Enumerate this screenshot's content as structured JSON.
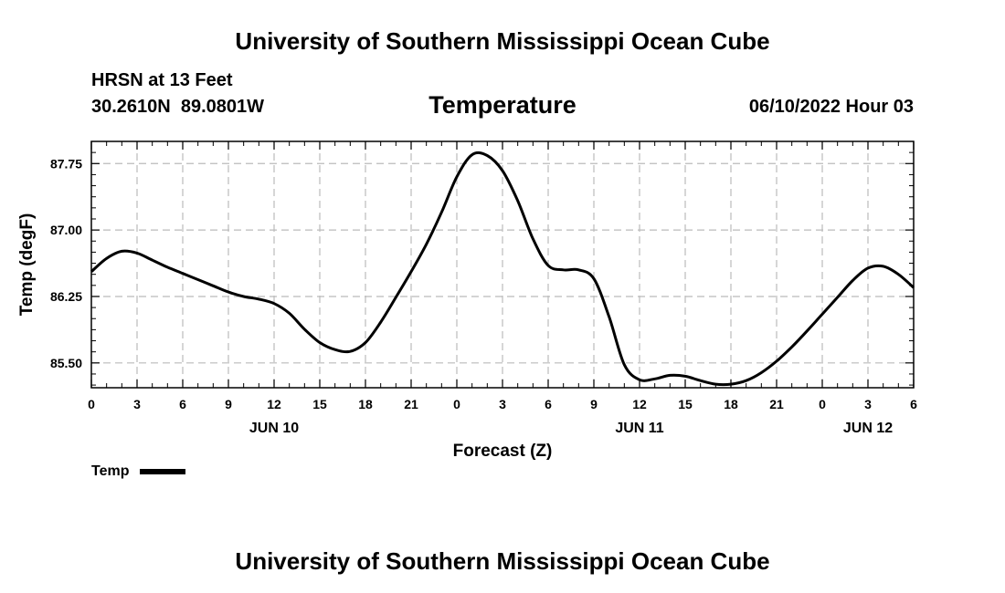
{
  "header": {
    "title": "University of Southern Mississippi Ocean Cube",
    "station": "HRSN at 13 Feet",
    "coordinates": "30.2610N  89.0801W",
    "timestamp": "06/10/2022 Hour 03"
  },
  "footer": {
    "title": "University of Southern Mississippi Ocean Cube"
  },
  "chart_data": {
    "type": "line",
    "title": "Temperature",
    "xlabel": "Forecast (Z)",
    "ylabel": "Temp (degF)",
    "xlim": [
      0,
      54
    ],
    "ylim": [
      85.22,
      88.0
    ],
    "x_ticks": [
      0,
      3,
      6,
      9,
      12,
      15,
      18,
      21,
      24,
      27,
      30,
      33,
      36,
      39,
      42,
      45,
      48,
      51,
      54
    ],
    "x_tick_labels": [
      "0",
      "3",
      "6",
      "9",
      "12",
      "15",
      "18",
      "21",
      "0",
      "3",
      "6",
      "9",
      "12",
      "15",
      "18",
      "21",
      "0",
      "3",
      "6"
    ],
    "y_ticks": [
      85.5,
      86.25,
      87.0,
      87.75
    ],
    "y_tick_labels": [
      "85.50",
      "86.25",
      "87.00",
      "87.75"
    ],
    "date_labels": [
      {
        "x": 12,
        "label": "JUN 10"
      },
      {
        "x": 36,
        "label": "JUN 11"
      },
      {
        "x": 51,
        "label": "JUN 12"
      }
    ],
    "grid": true,
    "line_color": "#000000",
    "series": [
      {
        "name": "Temp",
        "x": [
          0,
          1,
          2,
          3,
          4,
          5,
          6,
          7,
          8,
          9,
          10,
          11,
          12,
          13,
          14,
          15,
          16,
          17,
          18,
          19,
          20,
          21,
          22,
          23,
          24,
          25,
          26,
          27,
          28,
          29,
          30,
          31,
          32,
          33,
          34,
          35,
          36,
          37,
          38,
          39,
          40,
          41,
          42,
          43,
          44,
          45,
          46,
          47,
          48,
          49,
          50,
          51,
          52,
          53,
          54
        ],
        "values": [
          86.53,
          86.68,
          86.76,
          86.74,
          86.66,
          86.58,
          86.51,
          86.44,
          86.37,
          86.3,
          86.25,
          86.22,
          86.17,
          86.06,
          85.88,
          85.73,
          85.65,
          85.63,
          85.73,
          85.96,
          86.24,
          86.53,
          86.84,
          87.2,
          87.6,
          87.85,
          87.84,
          87.67,
          87.33,
          86.9,
          86.6,
          86.55,
          86.55,
          86.45,
          86.02,
          85.48,
          85.31,
          85.32,
          85.36,
          85.35,
          85.3,
          85.26,
          85.26,
          85.3,
          85.39,
          85.52,
          85.68,
          85.86,
          86.05,
          86.24,
          86.43,
          86.57,
          86.59,
          86.5,
          86.35
        ]
      }
    ]
  },
  "legend": {
    "label": "Temp"
  }
}
